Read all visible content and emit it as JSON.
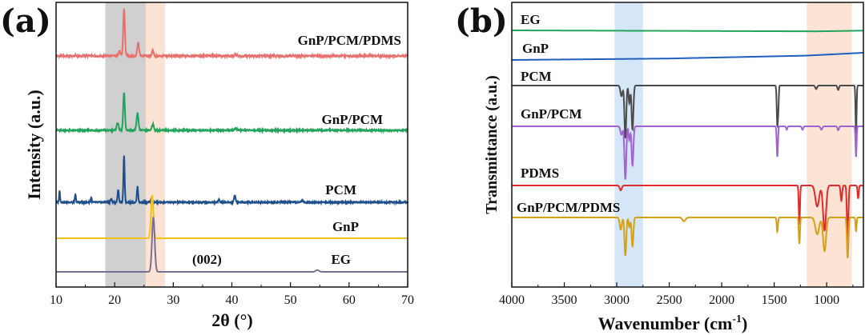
{
  "chart_data": [
    {
      "panel": "(a)",
      "type": "line",
      "xlabel": "2θ (°)",
      "ylabel": "Intensity (a.u.)",
      "xlim": [
        10,
        70
      ],
      "xticks": [
        10,
        20,
        30,
        40,
        50,
        60,
        70
      ],
      "highlight_bands": [
        {
          "from": 18.4,
          "to": 25.3,
          "color": "#d0d0d0"
        },
        {
          "from": 25.3,
          "to": 28.6,
          "color": "#fde3d3"
        }
      ],
      "annotations": [
        {
          "text": "(002)",
          "x": 26.6,
          "series": "EG"
        }
      ],
      "series": [
        {
          "name": "GnP/PCM/PDMS",
          "color": "#e8706d",
          "baseline": 1.5,
          "peaks": [
            [
              20.8,
              0.35,
              0.22
            ],
            [
              21.6,
              3.3,
              0.2
            ],
            [
              24.0,
              0.9,
              0.22
            ],
            [
              26.5,
              0.35,
              0.22
            ],
            [
              40.7,
              0.1,
              0.3
            ]
          ],
          "noise": 0.06
        },
        {
          "name": "GnP/PCM",
          "color": "#23a35b",
          "baseline": 1.17,
          "peaks": [
            [
              20.5,
              0.55,
              0.22
            ],
            [
              21.6,
              2.6,
              0.2
            ],
            [
              23.9,
              1.2,
              0.22
            ],
            [
              26.5,
              0.45,
              0.22
            ],
            [
              40.7,
              0.12,
              0.3
            ]
          ],
          "noise": 0.05
        },
        {
          "name": "PCM",
          "color": "#1f4e8c",
          "baseline": 0.86,
          "peaks": [
            [
              10.6,
              0.8,
              0.12
            ],
            [
              13.3,
              0.55,
              0.12
            ],
            [
              16.0,
              0.35,
              0.12
            ],
            [
              19.4,
              0.25,
              0.15
            ],
            [
              20.6,
              0.9,
              0.15
            ],
            [
              21.6,
              3.2,
              0.15
            ],
            [
              23.9,
              1.1,
              0.15
            ],
            [
              26.3,
              0.3,
              0.15
            ],
            [
              37.8,
              0.25,
              0.15
            ],
            [
              40.5,
              0.5,
              0.18
            ],
            [
              52.0,
              0.15,
              0.2
            ]
          ],
          "noise": 0.05
        },
        {
          "name": "GnP",
          "color": "#f2c21b",
          "baseline": 0.4,
          "peaks": [
            [
              26.4,
              3.0,
              0.28
            ]
          ],
          "noise": 0.0
        },
        {
          "name": "EG",
          "color": "#7a6f93",
          "baseline": 0.0,
          "peaks": [
            [
              26.6,
              3.8,
              0.32
            ],
            [
              54.6,
              0.12,
              0.4
            ]
          ],
          "noise": 0.0
        }
      ]
    },
    {
      "panel": "(b)",
      "type": "line",
      "xlabel": "Wavenumber (cm",
      "xlabel_superscript": "-1",
      "xlabel_suffix": ")",
      "ylabel": "Transmittance (a.u.)",
      "xlim": [
        4000,
        650
      ],
      "xticks": [
        4000,
        3500,
        3000,
        2500,
        2000,
        1500,
        1000
      ],
      "highlight_bands": [
        {
          "from": 3020,
          "to": 2750,
          "color": "#d4e6f7"
        },
        {
          "from": 1190,
          "to": 760,
          "color": "#fde3d3"
        }
      ],
      "series": [
        {
          "name": "EG",
          "color": "#23a35b",
          "baseline": 0.96,
          "bands": [],
          "drift": [
            [
              4000,
              0.0
            ],
            [
              2500,
              -0.02
            ],
            [
              1100,
              -0.04
            ],
            [
              650,
              -0.01
            ]
          ]
        },
        {
          "name": "GnP",
          "color": "#1f5fbf",
          "baseline": 0.8,
          "bands": [],
          "drift": [
            [
              4000,
              -0.05
            ],
            [
              2500,
              -0.02
            ],
            [
              1200,
              0.04
            ],
            [
              650,
              0.1
            ]
          ]
        },
        {
          "name": "PCM",
          "color": "#4a4a4a",
          "baseline": 0.62,
          "bands": [
            [
              2955,
              0.12,
              14
            ],
            [
              2918,
              0.6,
              12
            ],
            [
              2880,
              0.2,
              10
            ],
            [
              2850,
              0.5,
              12
            ],
            [
              1470,
              0.45,
              8
            ],
            [
              1460,
              0.2,
              6
            ],
            [
              720,
              0.55,
              7
            ],
            [
              890,
              0.05,
              10
            ],
            [
              1100,
              0.04,
              12
            ]
          ],
          "drift": [
            [
              4000,
              0.0
            ],
            [
              650,
              0.0
            ]
          ]
        },
        {
          "name": "GnP/PCM",
          "color": "#a262d4",
          "baseline": 0.42,
          "bands": [
            [
              2955,
              0.15,
              14
            ],
            [
              2918,
              0.95,
              12
            ],
            [
              2880,
              0.25,
              10
            ],
            [
              2850,
              0.7,
              12
            ],
            [
              1470,
              0.55,
              8
            ],
            [
              720,
              0.55,
              7
            ],
            [
              1380,
              0.06,
              8
            ],
            [
              1230,
              0.06,
              10
            ],
            [
              1050,
              0.06,
              12
            ],
            [
              890,
              0.07,
              10
            ]
          ],
          "drift": [
            [
              4000,
              0.0
            ],
            [
              650,
              0.0
            ]
          ]
        },
        {
          "name": "PDMS",
          "color": "#e02b2b",
          "baseline": 0.25,
          "bands": [
            [
              2962,
              0.08,
              14
            ],
            [
              1260,
              0.65,
              8
            ],
            [
              1090,
              0.35,
              25
            ],
            [
              1020,
              0.75,
              20
            ],
            [
              860,
              0.25,
              10
            ],
            [
              800,
              0.9,
              10
            ],
            [
              700,
              0.22,
              8
            ]
          ],
          "drift": [
            [
              4000,
              0.0
            ],
            [
              650,
              0.0
            ]
          ]
        },
        {
          "name": "GnP/PCM/PDMS",
          "color": "#d4a017",
          "baseline": 0.05,
          "bands": [
            [
              2962,
              0.25,
              14
            ],
            [
              2918,
              0.8,
              12
            ],
            [
              2880,
              0.2,
              10
            ],
            [
              2850,
              0.6,
              12
            ],
            [
              2360,
              0.08,
              20
            ],
            [
              1470,
              0.3,
              8
            ],
            [
              1260,
              0.55,
              8
            ],
            [
              1090,
              0.35,
              25
            ],
            [
              1020,
              0.7,
              20
            ],
            [
              800,
              0.85,
              10
            ],
            [
              720,
              0.3,
              7
            ]
          ],
          "drift": [
            [
              4000,
              0.0
            ],
            [
              650,
              0.0
            ]
          ]
        }
      ]
    }
  ]
}
